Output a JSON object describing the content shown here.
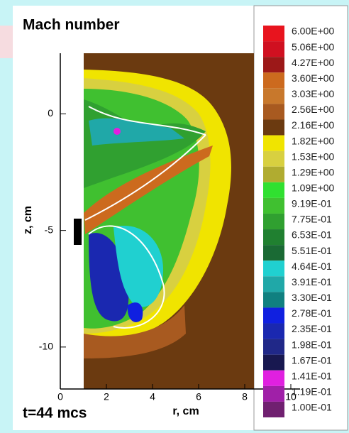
{
  "chart_data": {
    "type": "contour",
    "title": "Mach number",
    "annotation": "t=44 mcs",
    "x_label": "r, cm",
    "y_label": "z, cm",
    "xlim": [
      0,
      10.4
    ],
    "ylim": [
      -11.8,
      2.6
    ],
    "xticks": [
      0,
      2,
      4,
      6,
      8,
      10
    ],
    "yticks": [
      0,
      -5,
      -10
    ],
    "levels": [
      {
        "value": 6.0,
        "label": "6.00E+00"
      },
      {
        "value": 5.06,
        "label": "5.06E+00"
      },
      {
        "value": 4.27,
        "label": "4.27E+00"
      },
      {
        "value": 3.6,
        "label": "3.60E+00"
      },
      {
        "value": 3.03,
        "label": "3.03E+00"
      },
      {
        "value": 2.56,
        "label": "2.56E+00"
      },
      {
        "value": 2.16,
        "label": "2.16E+00"
      },
      {
        "value": 1.82,
        "label": "1.82E+00"
      },
      {
        "value": 1.53,
        "label": "1.53E+00"
      },
      {
        "value": 1.29,
        "label": "1.29E+00"
      },
      {
        "value": 1.09,
        "label": "1.09E+00"
      },
      {
        "value": 0.919,
        "label": "9.19E-01"
      },
      {
        "value": 0.775,
        "label": "7.75E-01"
      },
      {
        "value": 0.653,
        "label": "6.53E-01"
      },
      {
        "value": 0.551,
        "label": "5.51E-01"
      },
      {
        "value": 0.464,
        "label": "4.64E-01"
      },
      {
        "value": 0.391,
        "label": "3.91E-01"
      },
      {
        "value": 0.33,
        "label": "3.30E-01"
      },
      {
        "value": 0.278,
        "label": "2.78E-01"
      },
      {
        "value": 0.235,
        "label": "2.35E-01"
      },
      {
        "value": 0.198,
        "label": "1.98E-01"
      },
      {
        "value": 0.167,
        "label": "1.67E-01"
      },
      {
        "value": 0.141,
        "label": "1.41E-01"
      },
      {
        "value": 0.119,
        "label": "1.19E-01"
      },
      {
        "value": 0.1,
        "label": "1.00E-01"
      }
    ],
    "level_colors": [
      "#e8141e",
      "#d01020",
      "#9c1818",
      "#cc6a1e",
      "#c8782c",
      "#a85a20",
      "#6b3a10",
      "#f0e400",
      "#d8d040",
      "#b0ac30",
      "#30e030",
      "#40c030",
      "#30a030",
      "#208030",
      "#1a6a34",
      "#20d0d0",
      "#20a8a8",
      "#108080",
      "#1020e0",
      "#1a28b0",
      "#202888",
      "#181850",
      "#e020e0",
      "#a020a8",
      "#702070"
    ]
  }
}
